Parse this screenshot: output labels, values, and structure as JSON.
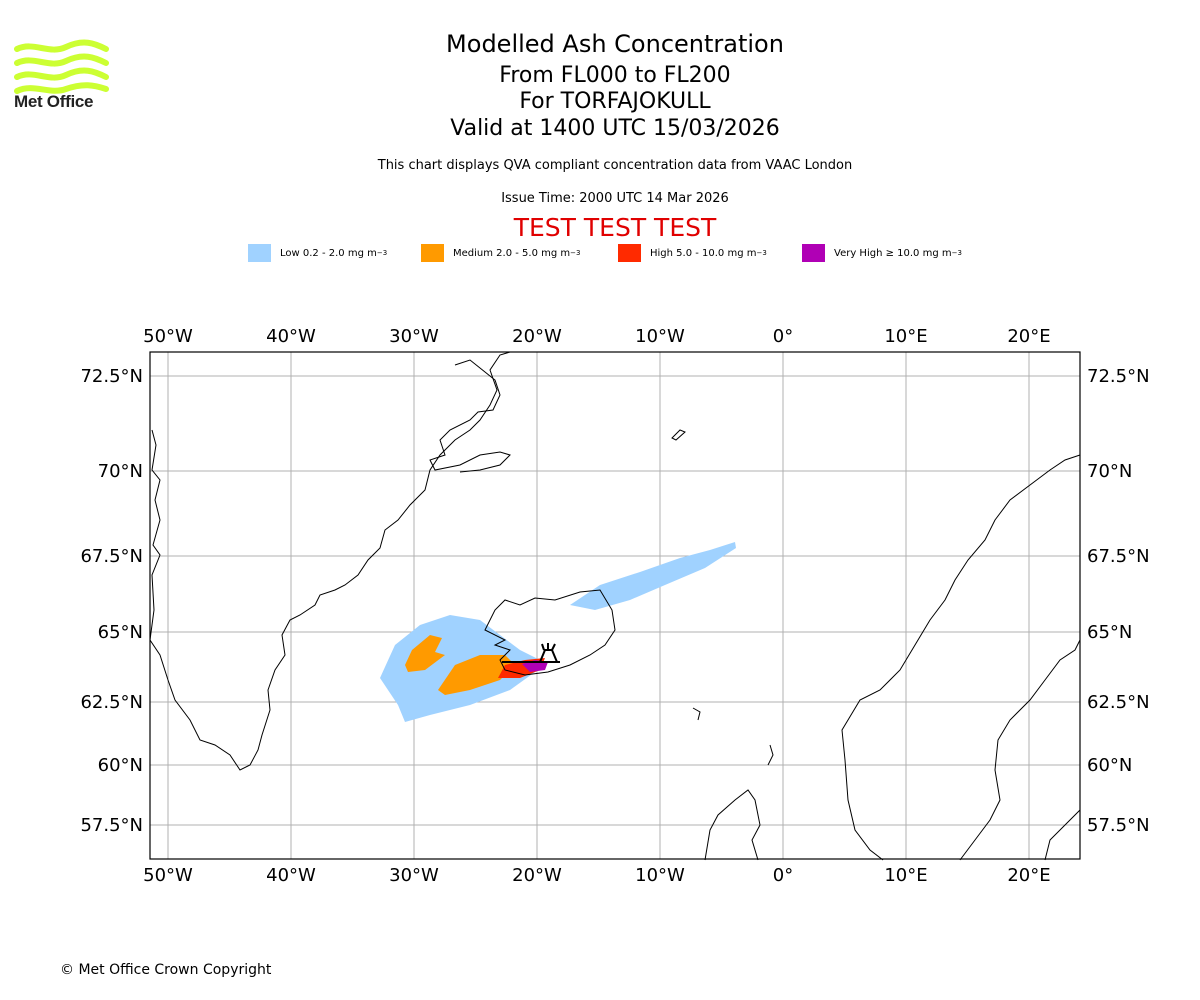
{
  "logo": {
    "text": "Met Office",
    "color": "#ccff33"
  },
  "title": {
    "main": "Modelled Ash Concentration",
    "levels": "From FL000 to FL200",
    "volcano": "For TORFAJOKULL",
    "valid": "Valid at 1400 UTC 15/03/2026"
  },
  "subtitle": "This chart displays QVA compliant concentration data from VAAC London",
  "issue_time": "Issue Time: 2000 UTC 14 Mar 2026",
  "test_banner": "TEST TEST TEST",
  "legend": [
    {
      "label": "Low 0.2 - 2.0 mg m",
      "sup": "−3",
      "color": "#a0d2ff"
    },
    {
      "label": "Medium 2.0 - 5.0 mg m",
      "sup": "−3",
      "color": "#ff9a00"
    },
    {
      "label": "High 5.0 - 10.0 mg m",
      "sup": "−3",
      "color": "#ff2a00"
    },
    {
      "label": "Very High ≥ 10.0 mg m",
      "sup": "−3",
      "color": "#b000b5"
    }
  ],
  "map": {
    "lon_ticks": [
      "50°W",
      "40°W",
      "30°W",
      "20°W",
      "10°W",
      "0°",
      "10°E",
      "20°E"
    ],
    "lat_ticks": [
      "72.5°N",
      "70°N",
      "67.5°N",
      "65°N",
      "62.5°N",
      "60°N",
      "57.5°N"
    ],
    "lon_values": [
      -50,
      -40,
      -30,
      -20,
      -10,
      0,
      10,
      20
    ],
    "lat_values": [
      72.5,
      70,
      67.5,
      65,
      62.5,
      60,
      57.5
    ],
    "grid_color": "#b0b0b0",
    "volcano_icon": "volcano-icon"
  },
  "copyright": "© Met Office Crown Copyright"
}
